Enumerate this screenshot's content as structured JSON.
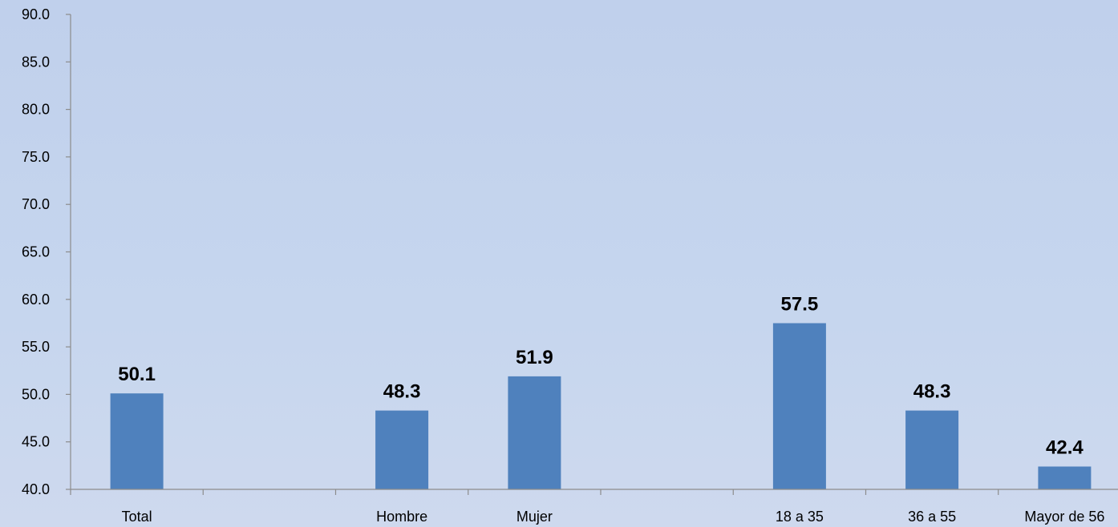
{
  "chart_data": {
    "type": "bar",
    "categories": [
      "Total",
      "",
      "Hombre",
      "Mujer",
      "",
      "18 a 35",
      "36 a 55",
      "Mayor de 56"
    ],
    "values": [
      50.1,
      null,
      48.3,
      51.9,
      null,
      57.5,
      48.3,
      42.4
    ],
    "data_labels": [
      "50.1",
      "",
      "48.3",
      "51.9",
      "",
      "57.5",
      "48.3",
      "42.4"
    ],
    "y_ticks": [
      "40.0",
      "45.0",
      "50.0",
      "55.0",
      "60.0",
      "65.0",
      "70.0",
      "75.0",
      "80.0",
      "85.0",
      "90.0"
    ],
    "ylim": [
      40,
      90
    ],
    "title": "",
    "xlabel": "",
    "ylabel": "",
    "grid": false,
    "legend": "none",
    "colors": {
      "bar": "#4f81bd",
      "axis": "#8c8c8c",
      "label": "#000000"
    }
  }
}
